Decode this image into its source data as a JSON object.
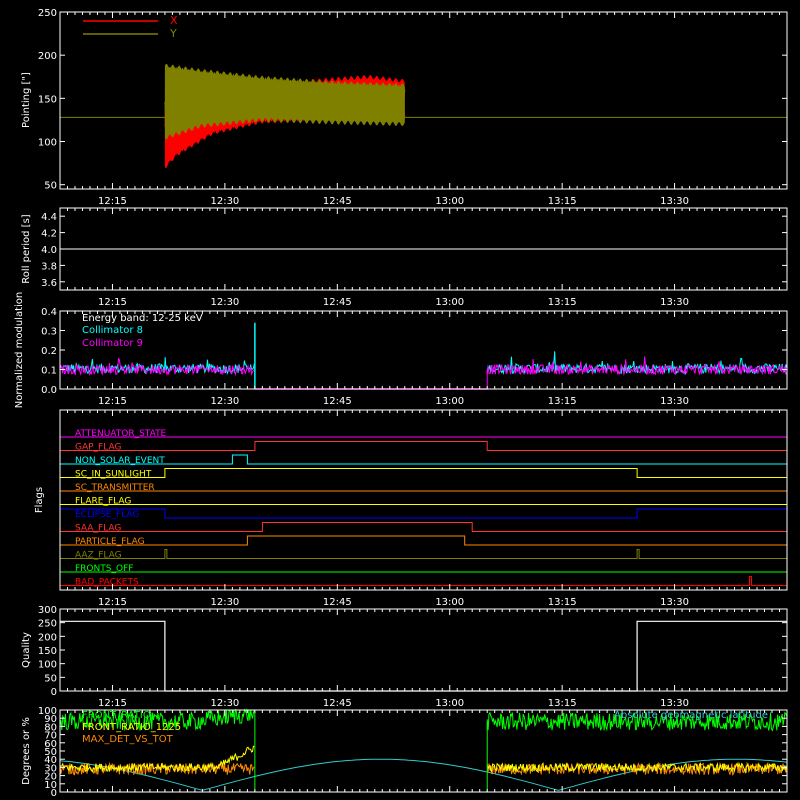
{
  "time_ticks": [
    "12:15",
    "12:30",
    "12:45",
    "13:00",
    "13:15",
    "13:30"
  ],
  "chart_data": [
    {
      "type": "line",
      "ylabel": "Pointing [\"]",
      "ylim": [
        45,
        250
      ],
      "yticks": [
        50,
        100,
        150,
        200,
        250
      ],
      "grid": false,
      "legend_placement": "top-left",
      "series": [
        {
          "name": "X",
          "color": "#ff0000",
          "baseline": 128,
          "oscillation": {
            "start": "12:22",
            "end": "12:54",
            "upper": [
              [
                0,
                165
              ],
              [
                0.1,
                171
              ],
              [
                0.3,
                171
              ],
              [
                0.6,
                170
              ],
              [
                0.85,
                175
              ],
              [
                1,
                170
              ]
            ],
            "lower": [
              [
                0,
                70
              ],
              [
                0.05,
                85
              ],
              [
                0.2,
                110
              ],
              [
                0.4,
                123
              ],
              [
                0.7,
                125
              ],
              [
                1,
                124
              ]
            ]
          }
        },
        {
          "name": "Y",
          "color": "#808000",
          "baseline": 128,
          "oscillation": {
            "start": "12:22",
            "end": "12:54",
            "upper": [
              [
                0,
                188
              ],
              [
                0.15,
                182
              ],
              [
                0.4,
                174
              ],
              [
                0.7,
                168
              ],
              [
                1,
                165
              ]
            ],
            "lower": [
              [
                0,
                104
              ],
              [
                0.15,
                118
              ],
              [
                0.4,
                125
              ],
              [
                0.7,
                122
              ],
              [
                1,
                120
              ]
            ]
          }
        }
      ]
    },
    {
      "type": "line",
      "ylabel": "Roll period [s]",
      "ylim": [
        3.5,
        4.5
      ],
      "yticks": [
        3.6,
        3.8,
        4.0,
        4.2,
        4.4
      ],
      "grid": false,
      "series": [
        {
          "color": "#ffffff",
          "values": [
            4.0,
            4.0
          ]
        }
      ]
    },
    {
      "type": "line",
      "ylabel": "Normalized modulation",
      "ylim": [
        0,
        0.4
      ],
      "yticks": [
        0.0,
        0.1,
        0.2,
        0.3,
        0.4
      ],
      "grid": false,
      "annotation": "Energy band: 12-25 keV",
      "legend_placement": "top-left",
      "gap": {
        "start": "12:34",
        "end": "13:05"
      },
      "spike": {
        "time": "12:34",
        "value": 0.34
      },
      "series": [
        {
          "name": "Collimator 8",
          "color": "#00ffff",
          "level": 0.105
        },
        {
          "name": "Collimator 9",
          "color": "#ff00ff",
          "level": 0.1
        }
      ]
    },
    {
      "type": "line",
      "ylabel": "Flags",
      "grid": false,
      "flags": [
        {
          "name": "ATTENUATOR_STATE",
          "color": "#ff00ff",
          "high": []
        },
        {
          "name": "GAP_FLAG",
          "color": "#ff3333",
          "high": [
            [
              "12:34",
              "13:05"
            ]
          ]
        },
        {
          "name": "NON_SOLAR_EVENT",
          "color": "#00ffff",
          "high": [
            [
              "12:31",
              "12:33"
            ]
          ]
        },
        {
          "name": "SC_IN_SUNLIGHT",
          "color": "#ffff00",
          "high": [
            [
              "12:22",
              "13:25"
            ]
          ]
        },
        {
          "name": "SC_TRANSMITTER",
          "color": "#ff8800",
          "high": []
        },
        {
          "name": "FLARE_FLAG",
          "color": "#ffff00",
          "high": []
        },
        {
          "name": "ECLIPSE_FLAG",
          "color": "#0000ff",
          "high": [
            [
              "12:08",
              "12:22"
            ],
            [
              "13:25",
              "13:45"
            ]
          ]
        },
        {
          "name": "SAA_FLAG",
          "color": "#ff3333",
          "high": [
            [
              "12:35",
              "13:03"
            ]
          ]
        },
        {
          "name": "PARTICLE_FLAG",
          "color": "#ff8800",
          "high": [
            [
              "12:33",
              "13:02"
            ]
          ]
        },
        {
          "name": "AAZ_FLAG",
          "color": "#808000",
          "high": [
            [
              "12:22",
              "12:22"
            ],
            [
              "13:25",
              "13:25"
            ]
          ]
        },
        {
          "name": "FRONTS_OFF",
          "color": "#00ff00",
          "high": []
        },
        {
          "name": "BAD_PACKETS",
          "color": "#ff0000",
          "high": [
            [
              "13:40",
              "13:40"
            ]
          ]
        }
      ]
    },
    {
      "type": "line",
      "ylabel": "Quality",
      "ylim": [
        0,
        300
      ],
      "yticks": [
        0,
        50,
        100,
        150,
        200,
        250,
        300
      ],
      "grid": false,
      "series": [
        {
          "color": "#ffffff",
          "points": [
            [
              "12:08",
              255
            ],
            [
              "12:22",
              255
            ],
            [
              "12:22",
              0
            ],
            [
              "13:25",
              0
            ],
            [
              "13:25",
              255
            ],
            [
              "13:45",
              255
            ]
          ]
        }
      ]
    },
    {
      "type": "line",
      "ylabel": "Degrees or %",
      "ylim": [
        0,
        100
      ],
      "yticks": [
        0,
        10,
        20,
        30,
        40,
        50,
        60,
        70,
        80,
        90,
        100
      ],
      "grid": false,
      "legend_placement": "top-left",
      "annotation": "Absolute geomagnetic latitude",
      "gap": {
        "start": "12:34",
        "end": "13:05"
      },
      "series": [
        {
          "name": "FRONT_RATIO",
          "color": "#00ff00",
          "level": 86
        },
        {
          "name": "FRONT_RATIO_1225",
          "color": "#ffff00",
          "level": 30
        },
        {
          "name": "MAX_DET_VS_TOT",
          "color": "#ff8800",
          "level": 28
        },
        {
          "name": "Absolute geomagnetic latitude",
          "color": "#33cccc"
        }
      ]
    }
  ]
}
